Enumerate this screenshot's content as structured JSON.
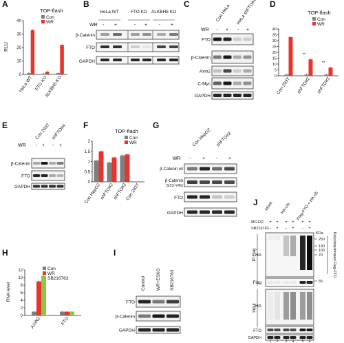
{
  "panels": {
    "A": {
      "letter": "A",
      "title": "TOP-flash",
      "legend": [
        "Con",
        "WR"
      ],
      "ylabel": "RLU",
      "yticks": [
        "0",
        "10",
        "20",
        "30",
        "40"
      ],
      "categories": [
        "HeLa WT",
        "FTO KO",
        "ALKBH5 KO"
      ],
      "colors": {
        "con": "#7f7f7f",
        "wr": "#e8342c"
      }
    },
    "B": {
      "letter": "B",
      "groups": [
        "HeLa WT",
        "FTO KO",
        "ALKBH5 KO"
      ],
      "wr_label": "WR",
      "wr_marks": [
        "-",
        "+",
        "-",
        "+",
        "-",
        "+"
      ],
      "bands": [
        "β-Catenin",
        "FTO",
        "GAPDH"
      ]
    },
    "C": {
      "letter": "C",
      "lanes": [
        "Con HeLa",
        "HeLa shFTO#4"
      ],
      "wr_label": "WR",
      "wr_marks": [
        "-",
        "+",
        "-",
        "+"
      ],
      "bands": [
        "FTO",
        "β-Catenin",
        "Axin2",
        "C-Myc",
        "GAPDH"
      ]
    },
    "D": {
      "letter": "D",
      "title": "TOP-flash",
      "legend": [
        "Con",
        "WR"
      ],
      "yticks": [
        "0",
        "5",
        "10",
        "15",
        "20",
        "25",
        "30",
        "35",
        "40"
      ],
      "categories": [
        "Con 293T",
        "shFTO#2",
        "shFTO#3"
      ],
      "stars": [
        "**",
        "**"
      ]
    },
    "E": {
      "letter": "E",
      "lanes": [
        "Con 293T",
        "shFTO#4"
      ],
      "wr_label": "WR",
      "wr_marks": [
        "-",
        "+",
        "-",
        "+"
      ],
      "bands": [
        "β-Catenin",
        "FTO",
        "GAPDH"
      ]
    },
    "F": {
      "letter": "F",
      "title": "TOP-flash",
      "legend": [
        "Con",
        "WR"
      ],
      "yticks": [
        "0",
        "0.5",
        "1",
        "1.5",
        "2"
      ],
      "categories": [
        "Con HepG2",
        "shFTO#2",
        "shFTO#3",
        "Con 293T"
      ]
    },
    "G": {
      "letter": "G",
      "lanes": [
        "Con HepG2",
        "shFTO#2"
      ],
      "wr_label": "WR",
      "wr_marks": [
        "-",
        "+",
        "-",
        "+"
      ],
      "bands": [
        "β-Catenin wt",
        "β-Catenin",
        "(S33-Y45)",
        "FTO",
        "GAPDH"
      ]
    },
    "H": {
      "letter": "H",
      "legend": [
        "Con",
        "WR",
        "SB216763"
      ],
      "ylabel": "RNA level",
      "yticks": [
        "0",
        "2",
        "4",
        "6",
        "8",
        "10",
        "12"
      ],
      "categories": [
        "AXIN2",
        "FTO"
      ],
      "colors": {
        "con": "#7f7f7f",
        "wr": "#e8342c",
        "sb": "#8dc63f"
      }
    },
    "I": {
      "letter": "I",
      "lanes": [
        "Control",
        "WR+ESKO",
        "SB216763"
      ],
      "bands": [
        "FTO",
        "β-Catenin",
        "GAPDH"
      ]
    },
    "J": {
      "letter": "J",
      "lanes": [
        "Mock",
        "HA-Ub",
        "Flag-FTO + HA-ub"
      ],
      "rows": [
        "MG132",
        "SB216763"
      ],
      "row_marks": [
        [
          "+",
          "+",
          "+",
          "+",
          "+",
          "+"
        ],
        [
          "-",
          "+",
          "-",
          "+",
          "-",
          "+"
        ]
      ],
      "group_labels": [
        "IP:Flag",
        "Input"
      ],
      "bands": [
        "HA",
        "Flag",
        "HA",
        "FTO",
        "GAPDH"
      ],
      "kda_label": "KDa",
      "markers": [
        "250",
        "130",
        "100",
        "70",
        "55"
      ],
      "side_label": "Polyubiquitinated Flag-FTO",
      "lane_numbers": [
        "1",
        "2",
        "3",
        "4",
        "5",
        "6"
      ]
    }
  },
  "chart_data": [
    {
      "panel": "A",
      "type": "bar",
      "title": "TOP-flash",
      "ylabel": "RLU",
      "categories": [
        "HeLa WT",
        "FTO KO",
        "ALKBH5 KO"
      ],
      "ylim": [
        0,
        40
      ],
      "series": [
        {
          "name": "Con",
          "values": [
            1,
            0.5,
            1
          ]
        },
        {
          "name": "WR",
          "values": [
            33,
            2,
            22
          ]
        }
      ],
      "legend": "top-right"
    },
    {
      "panel": "D",
      "type": "bar",
      "title": "TOP-flash",
      "categories": [
        "Con 293T",
        "shFTO#2",
        "shFTO#3"
      ],
      "ylim": [
        0,
        40
      ],
      "series": [
        {
          "name": "Con",
          "values": [
            1,
            1,
            1
          ]
        },
        {
          "name": "WR",
          "values": [
            33,
            14,
            7
          ]
        }
      ],
      "legend": "top-right"
    },
    {
      "panel": "F",
      "type": "bar",
      "title": "TOP-flash",
      "categories": [
        "Con HepG2",
        "shFTO#2",
        "shFTO#3",
        "Con 293T"
      ],
      "ylim": [
        0,
        2
      ],
      "series": [
        {
          "name": "Con",
          "values": [
            1.05,
            0.95,
            1.3,
            0
          ]
        },
        {
          "name": "WR",
          "values": [
            1.5,
            1.2,
            1.35,
            0
          ]
        }
      ],
      "legend": "top-right"
    },
    {
      "panel": "H",
      "type": "bar",
      "ylabel": "RNA level",
      "categories": [
        "AXIN2",
        "FTO"
      ],
      "ylim": [
        0,
        12
      ],
      "series": [
        {
          "name": "Con",
          "values": [
            1,
            1
          ]
        },
        {
          "name": "WR",
          "values": [
            9,
            1
          ]
        },
        {
          "name": "SB216763",
          "values": [
            10.5,
            1
          ]
        }
      ],
      "legend": "top-right"
    }
  ]
}
